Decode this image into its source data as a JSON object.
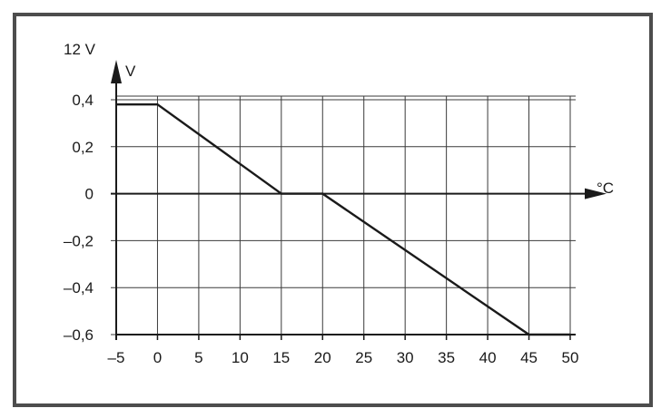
{
  "chart_data": {
    "type": "line",
    "title": "",
    "top_label": "12 V",
    "xlabel": "°C",
    "ylabel": "V",
    "xlim": [
      -5,
      50
    ],
    "ylim": [
      -0.6,
      0.4
    ],
    "grid": true,
    "x_ticks": [
      -5,
      0,
      5,
      10,
      15,
      20,
      25,
      30,
      35,
      40,
      45,
      50
    ],
    "x_tick_labels": [
      "–5",
      "0",
      "5",
      "10",
      "15",
      "20",
      "25",
      "30",
      "35",
      "40",
      "45",
      "50"
    ],
    "y_ticks": [
      0.4,
      0.2,
      0,
      -0.2,
      -0.4,
      -0.6
    ],
    "y_tick_labels": [
      "0,4",
      "0,2",
      "0",
      "–0,2",
      "–0,4",
      "–0,6"
    ],
    "series": [
      {
        "x": [
          -5,
          0,
          15,
          20,
          45,
          50
        ],
        "y": [
          0.38,
          0.38,
          0,
          0,
          -0.6,
          -0.6
        ]
      }
    ]
  },
  "colors": {
    "frame": "#4d4d4d",
    "grid": "#3a3a3a",
    "line": "#1a1a1a"
  }
}
